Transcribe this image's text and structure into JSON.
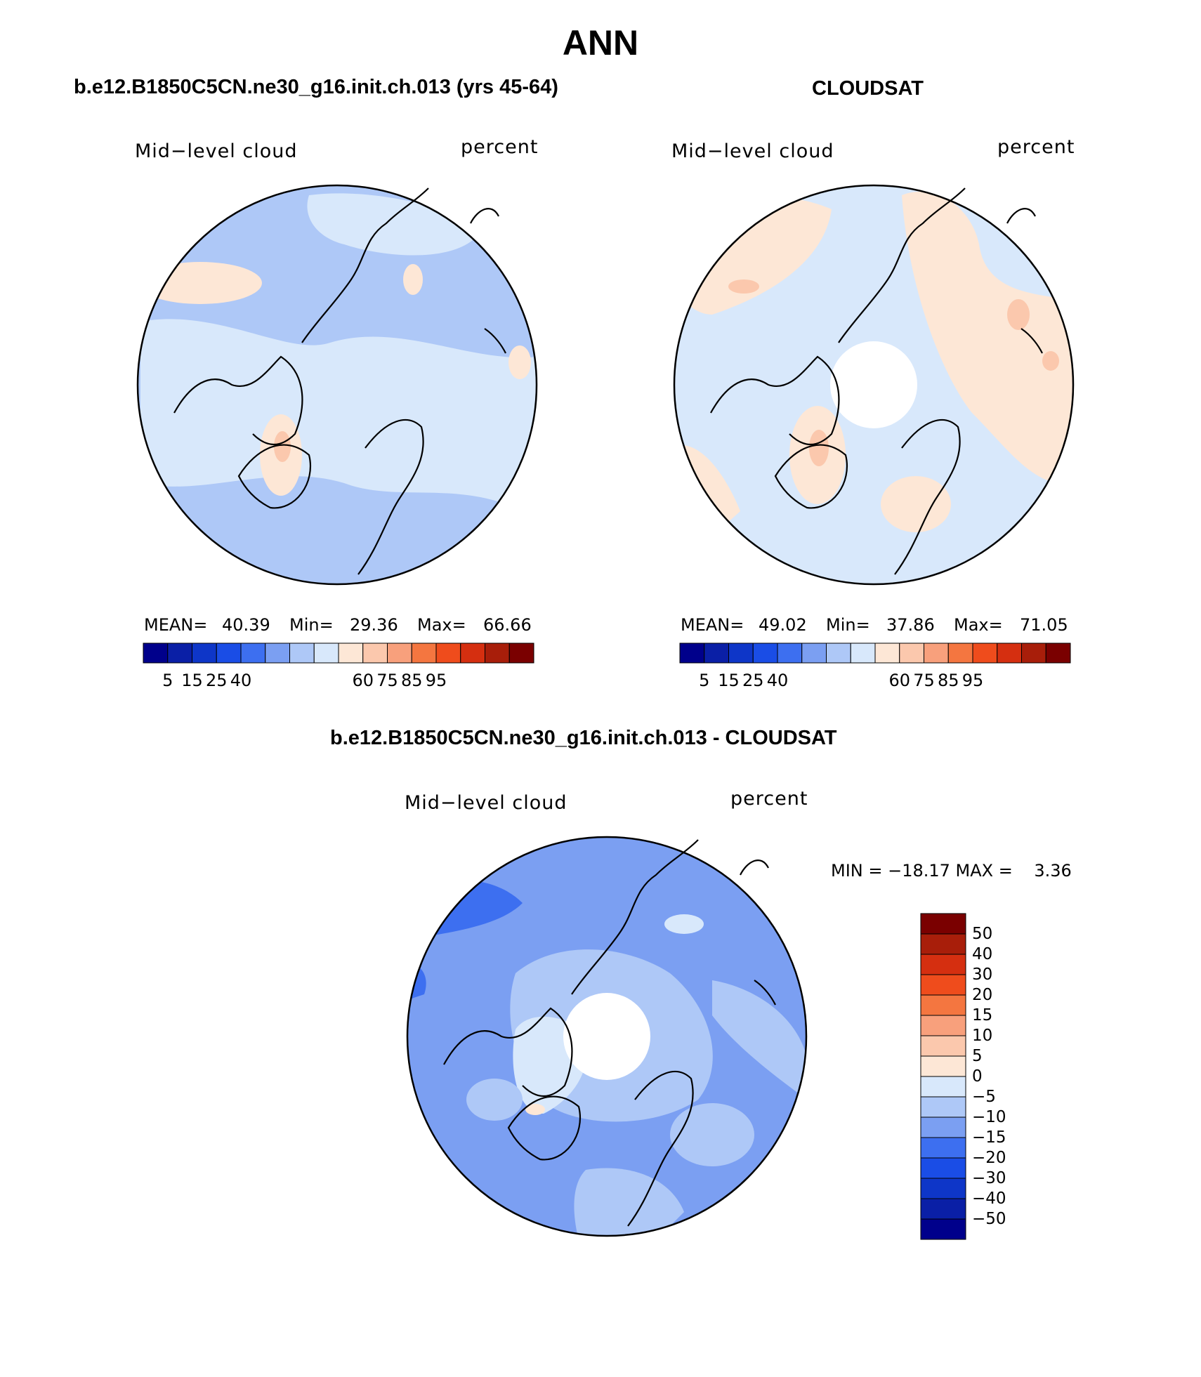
{
  "page_title": "ANN",
  "panels": [
    {
      "title": "b.e12.B1850C5CN.ne30_g16.init.ch.013 (yrs 45-64)",
      "left_label": "Mid−level cloud",
      "right_label": "percent",
      "stats": {
        "mean_label": "MEAN=",
        "mean": "40.39",
        "min_label": "Min=",
        "min": "29.36",
        "max_label": "Max=",
        "max": "66.66"
      },
      "colorbar_ticks": [
        "5",
        "15",
        "25",
        "40",
        "60",
        "75",
        "85",
        "95"
      ]
    },
    {
      "title": "CLOUDSAT",
      "left_label": "Mid−level cloud",
      "right_label": "percent",
      "stats": {
        "mean_label": "MEAN=",
        "mean": "49.02",
        "min_label": "Min=",
        "min": "37.86",
        "max_label": "Max=",
        "max": "71.05"
      },
      "colorbar_ticks": [
        "5",
        "15",
        "25",
        "40",
        "60",
        "75",
        "85",
        "95"
      ]
    }
  ],
  "diff_panel": {
    "title": "b.e12.B1850C5CN.ne30_g16.init.ch.013 - CLOUDSAT",
    "left_label": "Mid−level cloud",
    "right_label": "percent",
    "minmax": "MIN = −18.17 MAX =    3.36",
    "colorbar_ticks": [
      "50",
      "40",
      "30",
      "20",
      "15",
      "10",
      "5",
      "0",
      "−5",
      "−10",
      "−15",
      "−20",
      "−30",
      "−40",
      "−50"
    ]
  },
  "colors": {
    "abs_scale": [
      "#00008b",
      "#0a1fa6",
      "#0e36c8",
      "#1a4de6",
      "#3d6ff0",
      "#7b9ff2",
      "#aec8f7",
      "#d8e8fb",
      "#fde7d6",
      "#fbc8ad",
      "#f8a07c",
      "#f47640",
      "#ef4c1c",
      "#d52f10",
      "#a81e0a",
      "#7a0000"
    ],
    "diff_scale": [
      "#7a0000",
      "#a81e0a",
      "#d52f10",
      "#ef4c1c",
      "#f47640",
      "#f8a07c",
      "#fbc8ad",
      "#fde7d6",
      "#d8e8fb",
      "#aec8f7",
      "#7b9ff2",
      "#3d6ff0",
      "#1a4de6",
      "#0e36c8",
      "#0a1fa6",
      "#00008b"
    ]
  }
}
